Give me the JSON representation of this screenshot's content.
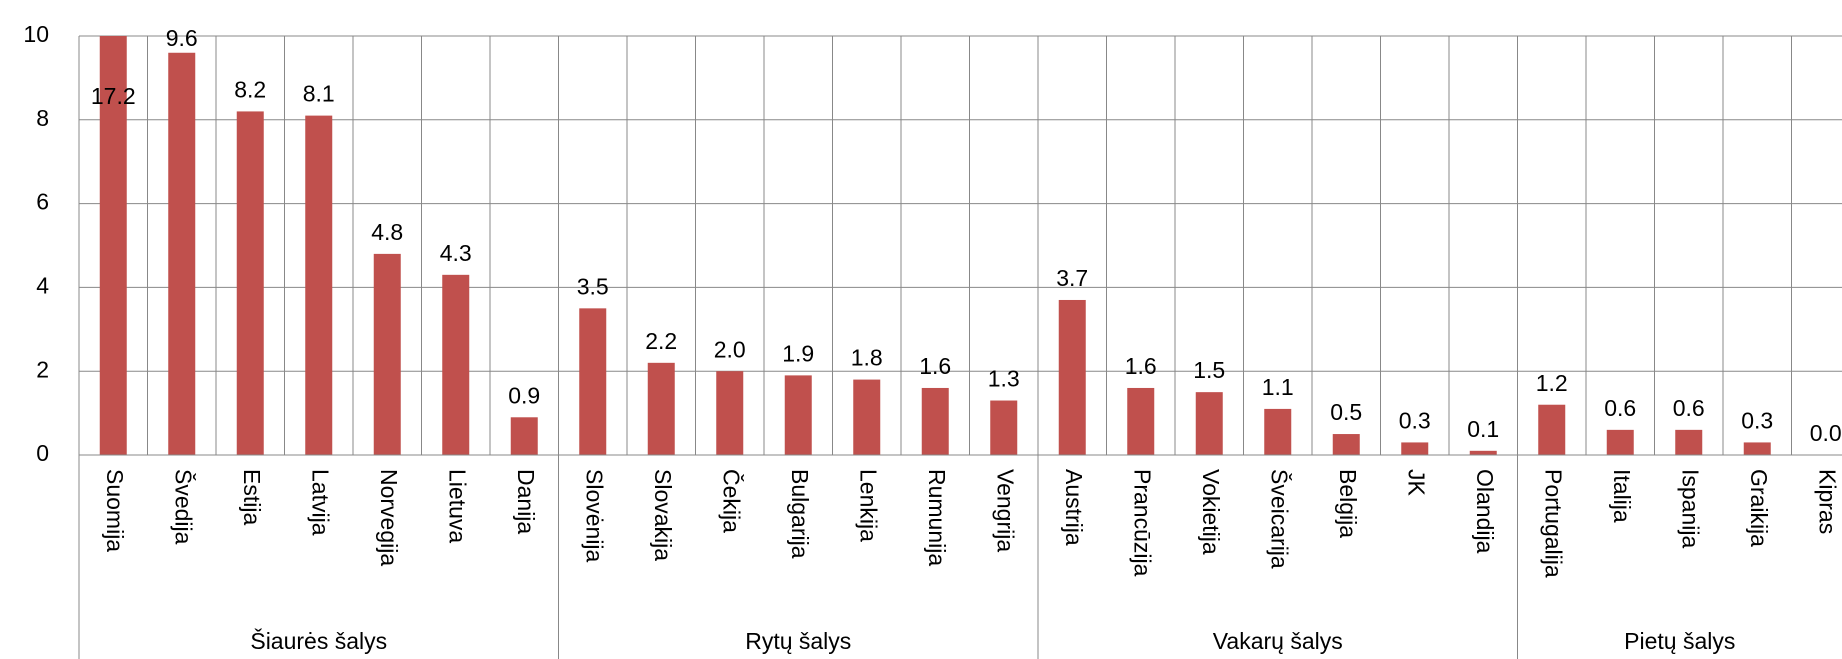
{
  "chart_data": {
    "type": "bar",
    "color": "#c0504d",
    "ylim": [
      0,
      10
    ],
    "yticks": [
      0,
      2,
      4,
      6,
      8,
      10
    ],
    "grid": true,
    "groups": [
      {
        "name": "Šiaurės šalys",
        "categories": [
          "Suomija",
          "Švedija",
          "Estija",
          "Latvija",
          "Norvegija",
          "Lietuva",
          "Danija"
        ],
        "values": [
          17.2,
          9.6,
          8.2,
          8.1,
          4.8,
          4.3,
          0.9
        ],
        "value_labels": [
          "17.2",
          "9.6",
          "8.2",
          "8.1",
          "4.8",
          "4.3",
          "0.9"
        ]
      },
      {
        "name": "Rytų šalys",
        "categories": [
          "Slovėnija",
          "Slovakija",
          "Čekija",
          "Bulgarija",
          "Lenkija",
          "Rumunija",
          "Vengrija"
        ],
        "values": [
          3.5,
          2.2,
          2.0,
          1.9,
          1.8,
          1.6,
          1.3
        ],
        "value_labels": [
          "3.5",
          "2.2",
          "2.0",
          "1.9",
          "1.8",
          "1.6",
          "1.3"
        ]
      },
      {
        "name": "Vakarų šalys",
        "categories": [
          "Austrija",
          "Prancūzija",
          "Vokietija",
          "Šveicarija",
          "Belgija",
          "JK",
          "Olandija"
        ],
        "values": [
          3.7,
          1.6,
          1.5,
          1.1,
          0.5,
          0.3,
          0.1
        ],
        "value_labels": [
          "3.7",
          "1.6",
          "1.5",
          "1.1",
          "0.5",
          "0.3",
          "0.1"
        ]
      },
      {
        "name": "Pietų šalys",
        "categories": [
          "Portugalija",
          "Italija",
          "Ispanija",
          "Graikija",
          "Kipras"
        ],
        "values": [
          1.2,
          0.6,
          0.6,
          0.3,
          0.0
        ],
        "value_labels": [
          "1.2",
          "0.6",
          "0.6",
          "0.3",
          "0.0"
        ]
      }
    ]
  }
}
